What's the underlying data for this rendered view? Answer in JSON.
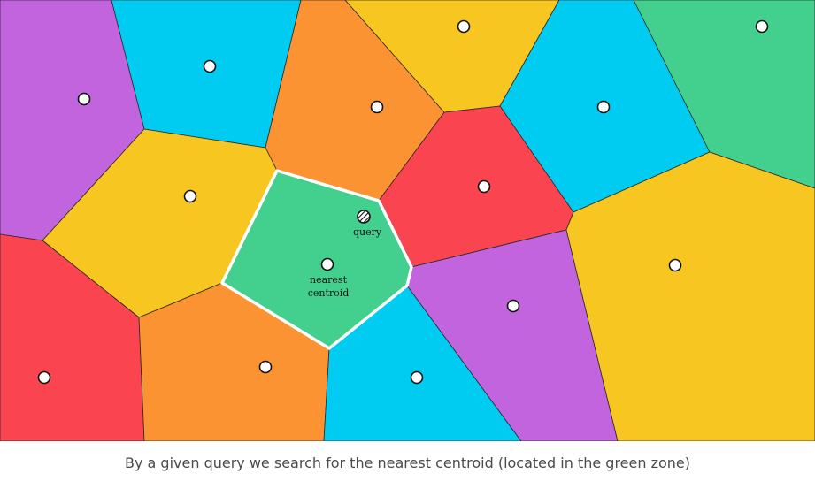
{
  "colors": {
    "purple": "#C264DE",
    "blue": "#00CCF2",
    "orange": "#FB9332",
    "yellow": "#F8C620",
    "red": "#FA444F",
    "green": "#43D08E",
    "border": "#2a2a2a",
    "highlight_border": "#ffffff"
  },
  "diagram": {
    "query_label": "query",
    "nearest_label_line1": "nearest",
    "nearest_label_line2": "centroid",
    "query_marker_icon": "hatched-circle-icon",
    "centroid_icon": "white-circle-icon"
  },
  "caption": "By a given query we search for the nearest centroid (located in the green zone)"
}
